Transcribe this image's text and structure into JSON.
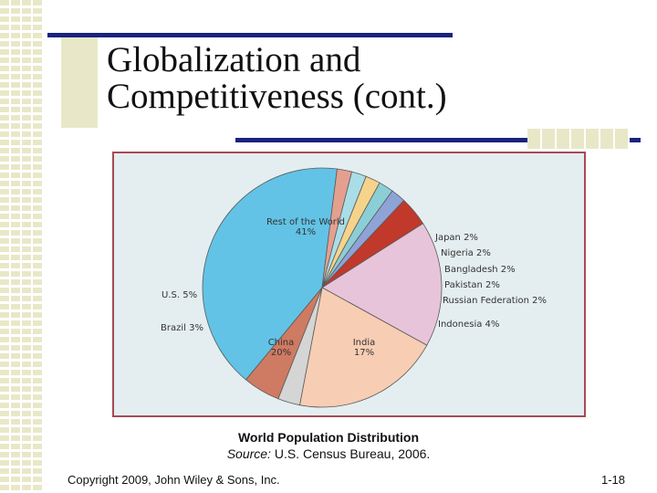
{
  "slide": {
    "title_line1": "Globalization and",
    "title_line2": "Competitiveness (cont.)",
    "caption_title": "World Population Distribution",
    "caption_source_label": "Source:",
    "caption_source_text": " U.S. Census Bureau, 2006.",
    "footer_left": "Copyright 2009, John Wiley & Sons, Inc.",
    "footer_right": "1-18"
  },
  "colors": {
    "accent_rule": "#1a237e",
    "decor_khaki": "#e8e8c8",
    "figure_bg": "#e4eef0",
    "figure_border": "#a64a55"
  },
  "chart_data": {
    "type": "pie",
    "title": "World Population Distribution",
    "unit": "%",
    "slices": [
      {
        "label": "Rest of the World",
        "value": 41,
        "value_label": "41%",
        "color": "#62c3e6"
      },
      {
        "label": "Japan",
        "value": 2,
        "value_label": "2%",
        "color": "#e4a08f"
      },
      {
        "label": "Nigeria",
        "value": 2,
        "value_label": "2%",
        "color": "#a9dee8"
      },
      {
        "label": "Bangladesh",
        "value": 2,
        "value_label": "2%",
        "color": "#f6d38a"
      },
      {
        "label": "Pakistan",
        "value": 2,
        "value_label": "2%",
        "color": "#8cced6"
      },
      {
        "label": "Russian Federation",
        "value": 2,
        "value_label": "2%",
        "color": "#8ea3d6"
      },
      {
        "label": "Indonesia",
        "value": 4,
        "value_label": "4%",
        "color": "#c0392b"
      },
      {
        "label": "India",
        "value": 17,
        "value_label": "17%",
        "color": "#e7c4d9"
      },
      {
        "label": "China",
        "value": 20,
        "value_label": "20%",
        "color": "#f7cdb4"
      },
      {
        "label": "Brazil",
        "value": 3,
        "value_label": "3%",
        "color": "#d5d5d5"
      },
      {
        "label": "U.S.",
        "value": 5,
        "value_label": "5%",
        "color": "#cf7a63"
      }
    ]
  }
}
